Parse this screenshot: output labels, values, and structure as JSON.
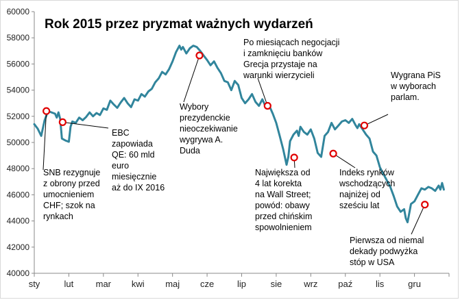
{
  "chart_data": {
    "type": "line",
    "title": "Rok 2015 przez pryzmat ważnych wydarzeń",
    "xlabel": "",
    "ylabel": "",
    "ylim": [
      40000,
      60000
    ],
    "yticks": [
      40000,
      42000,
      44000,
      46000,
      48000,
      50000,
      52000,
      54000,
      56000,
      58000,
      60000
    ],
    "ytick_labels": [
      "40000",
      "42000",
      "44000",
      "46000",
      "48000",
      "50000",
      "52000",
      "54000",
      "56000",
      "58000",
      "60000"
    ],
    "month_labels": [
      "sty",
      "lut",
      "mar",
      "kwi",
      "maj",
      "cze",
      "lip",
      "sie",
      "wrz",
      "paź",
      "lis",
      "gru"
    ],
    "grid": false,
    "line_color": "#31859c",
    "marker_color": "#e00000",
    "series": [
      {
        "name": "",
        "values": [
          [
            0.0,
            51400
          ],
          [
            0.1,
            51050
          ],
          [
            0.2,
            50500
          ],
          [
            0.3,
            51700
          ],
          [
            0.4,
            52400
          ],
          [
            0.5,
            52300
          ],
          [
            0.6,
            52200
          ],
          [
            0.65,
            51900
          ],
          [
            0.7,
            52300
          ],
          [
            0.75,
            51800
          ],
          [
            0.8,
            50300
          ],
          [
            0.9,
            50150
          ],
          [
            1.0,
            50050
          ],
          [
            1.05,
            51200
          ],
          [
            1.1,
            51600
          ],
          [
            1.2,
            51500
          ],
          [
            1.3,
            51900
          ],
          [
            1.4,
            51700
          ],
          [
            1.5,
            51950
          ],
          [
            1.6,
            52300
          ],
          [
            1.7,
            52000
          ],
          [
            1.8,
            52250
          ],
          [
            1.9,
            52100
          ],
          [
            2.0,
            52600
          ],
          [
            2.1,
            52500
          ],
          [
            2.2,
            53200
          ],
          [
            2.3,
            52900
          ],
          [
            2.4,
            52650
          ],
          [
            2.5,
            53050
          ],
          [
            2.6,
            53400
          ],
          [
            2.7,
            53000
          ],
          [
            2.8,
            52700
          ],
          [
            2.9,
            53300
          ],
          [
            3.0,
            53200
          ],
          [
            3.1,
            53700
          ],
          [
            3.2,
            53500
          ],
          [
            3.3,
            53900
          ],
          [
            3.4,
            54100
          ],
          [
            3.5,
            54600
          ],
          [
            3.6,
            54900
          ],
          [
            3.7,
            55400
          ],
          [
            3.8,
            55200
          ],
          [
            3.9,
            55600
          ],
          [
            4.0,
            56200
          ],
          [
            4.1,
            56900
          ],
          [
            4.2,
            57400
          ],
          [
            4.25,
            57100
          ],
          [
            4.3,
            57300
          ],
          [
            4.4,
            56800
          ],
          [
            4.5,
            57200
          ],
          [
            4.6,
            57400
          ],
          [
            4.7,
            57300
          ],
          [
            4.8,
            57000
          ],
          [
            4.9,
            56650
          ],
          [
            5.0,
            56300
          ],
          [
            5.1,
            55900
          ],
          [
            5.2,
            56200
          ],
          [
            5.3,
            55700
          ],
          [
            5.4,
            55300
          ],
          [
            5.5,
            54700
          ],
          [
            5.6,
            54600
          ],
          [
            5.7,
            54000
          ],
          [
            5.8,
            54700
          ],
          [
            5.9,
            54400
          ],
          [
            6.0,
            53400
          ],
          [
            6.1,
            53000
          ],
          [
            6.2,
            53300
          ],
          [
            6.3,
            53700
          ],
          [
            6.4,
            53100
          ],
          [
            6.5,
            52800
          ],
          [
            6.6,
            53300
          ],
          [
            6.7,
            52700
          ],
          [
            6.8,
            52800
          ],
          [
            6.9,
            52200
          ],
          [
            7.0,
            51500
          ],
          [
            7.1,
            50500
          ],
          [
            7.2,
            49500
          ],
          [
            7.3,
            48300
          ],
          [
            7.35,
            48900
          ],
          [
            7.4,
            50100
          ],
          [
            7.5,
            50600
          ],
          [
            7.6,
            50900
          ],
          [
            7.65,
            50500
          ],
          [
            7.7,
            51200
          ],
          [
            7.8,
            50800
          ],
          [
            7.9,
            50600
          ],
          [
            8.0,
            51000
          ],
          [
            8.1,
            50300
          ],
          [
            8.2,
            49200
          ],
          [
            8.3,
            48900
          ],
          [
            8.4,
            50500
          ],
          [
            8.5,
            50800
          ],
          [
            8.6,
            51500
          ],
          [
            8.7,
            51000
          ],
          [
            8.8,
            51300
          ],
          [
            8.9,
            51600
          ],
          [
            9.0,
            51700
          ],
          [
            9.1,
            51500
          ],
          [
            9.2,
            51800
          ],
          [
            9.3,
            51300
          ],
          [
            9.35,
            51100
          ],
          [
            9.4,
            51400
          ],
          [
            9.5,
            51000
          ],
          [
            9.6,
            50600
          ],
          [
            9.7,
            50300
          ],
          [
            9.8,
            49300
          ],
          [
            9.9,
            49000
          ],
          [
            10.0,
            48100
          ],
          [
            10.1,
            47600
          ],
          [
            10.2,
            47100
          ],
          [
            10.3,
            46600
          ],
          [
            10.4,
            45900
          ],
          [
            10.5,
            45100
          ],
          [
            10.6,
            44700
          ],
          [
            10.7,
            44900
          ],
          [
            10.75,
            44200
          ],
          [
            10.8,
            43900
          ],
          [
            10.9,
            45300
          ],
          [
            11.0,
            45500
          ],
          [
            11.1,
            46000
          ],
          [
            11.2,
            46500
          ],
          [
            11.3,
            46400
          ],
          [
            11.4,
            46600
          ],
          [
            11.5,
            46500
          ],
          [
            11.6,
            46300
          ],
          [
            11.7,
            46700
          ],
          [
            11.75,
            46400
          ],
          [
            11.8,
            46900
          ],
          [
            11.85,
            46400
          ]
        ]
      }
    ],
    "events": [
      {
        "x": 0.35,
        "y": 52400,
        "text": [
          "SNB rezygnuje",
          "z obrony przed",
          "umocnieniem",
          "CHF; szok na",
          "rynkach"
        ]
      },
      {
        "x": 0.82,
        "y": 51550,
        "text": [
          "EBC",
          "zapowiada",
          "QE: 60 mld",
          "euro",
          "miesięcznie",
          "aż do IX 2016"
        ]
      },
      {
        "x": 4.78,
        "y": 56650,
        "text": [
          "Wybory",
          "prezydenckie",
          "nieoczekiwanie",
          "wygrywa A.",
          "Duda"
        ]
      },
      {
        "x": 6.75,
        "y": 52800,
        "text": [
          "Po miesiącach negocjacji",
          "i zamknięciu banków",
          "Grecja przystaje na",
          "warunki wierzycieli"
        ]
      },
      {
        "x": 7.52,
        "y": 48850,
        "text": [
          "Największa od",
          "4 lat korekta",
          "na Wall Street;",
          "powód: obawy",
          "przed chińskim",
          "spowolnieniem"
        ]
      },
      {
        "x": 8.65,
        "y": 49150,
        "text": [
          "Indeks rynków",
          "wschodzących",
          "najniżej od",
          "sześciu lat"
        ]
      },
      {
        "x": 9.55,
        "y": 51300,
        "text": [
          "Wygrana PiS",
          "w wyborach",
          "parlam."
        ]
      },
      {
        "x": 11.3,
        "y": 45250,
        "text": [
          "Pierwsza od niemal",
          "dekady podwyżka",
          "stóp w USA"
        ]
      }
    ]
  }
}
